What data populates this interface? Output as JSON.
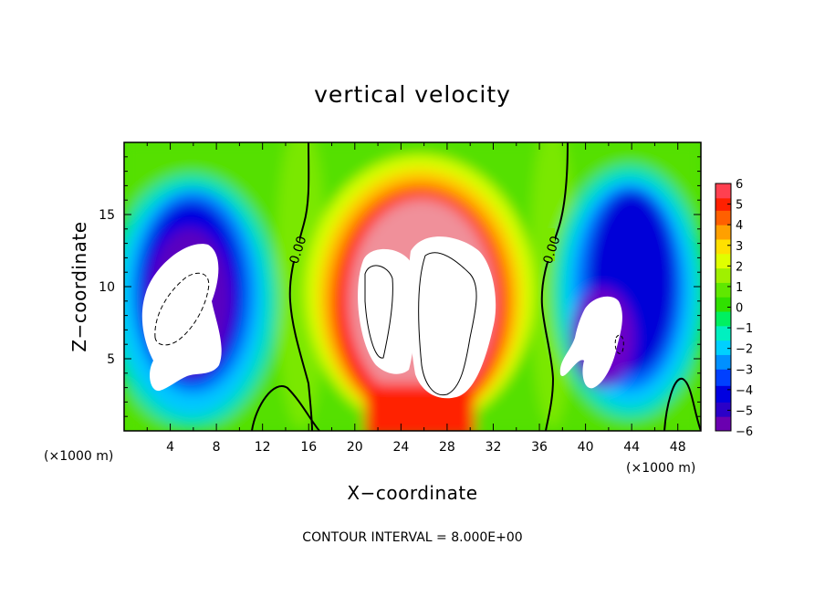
{
  "chart_data": {
    "type": "heatmap",
    "title": "vertical velocity",
    "xlabel": "X−coordinate",
    "ylabel": "Z−coordinate",
    "x_unit_label": "(×1000 m)",
    "x_unit_label_right": "(×1000 m)",
    "xlim": [
      0,
      50
    ],
    "ylim": [
      0,
      20
    ],
    "x_ticks": [
      4,
      8,
      12,
      16,
      20,
      24,
      28,
      32,
      36,
      40,
      44,
      48
    ],
    "y_ticks": [
      5,
      10,
      15
    ],
    "colorbar": {
      "min": -6,
      "max": 6,
      "ticks": [
        "6",
        "5",
        "4",
        "3",
        "2",
        "1",
        "0",
        "−1",
        "−2",
        "−3",
        "−4",
        "−5",
        "−6"
      ]
    },
    "zero_contour_labels": [
      "0.00",
      "0.00"
    ],
    "footer": "CONTOUR INTERVAL = 8.000E+00",
    "features": [
      {
        "kind": "updraft",
        "x": 26,
        "z": 9,
        "value": 8
      },
      {
        "kind": "downdraft",
        "x": 6,
        "z": 9,
        "value": -8
      },
      {
        "kind": "downdraft",
        "x": 43,
        "z": 9,
        "value": -7
      }
    ],
    "colors": {
      "max": "#f0909a",
      "high": "#ff0000",
      "mid_high": "#ffff00",
      "zero": "#22dd00",
      "mid_low": "#00e8ff",
      "low": "#0000d0",
      "min": "#7a00b8",
      "overflow": "#ffffff"
    }
  }
}
